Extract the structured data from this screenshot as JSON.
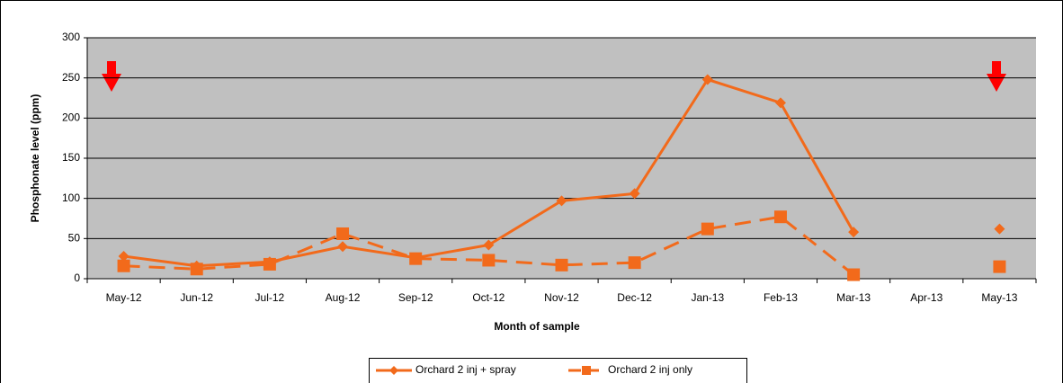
{
  "chart_data": {
    "type": "line",
    "x_label": "Month of sample",
    "y_label": "Phosphonate level (ppm)",
    "categories": [
      "May-12",
      "Jun-12",
      "Jul-12",
      "Aug-12",
      "Sep-12",
      "Oct-12",
      "Nov-12",
      "Dec-12",
      "Jan-13",
      "Feb-13",
      "Mar-13",
      "Apr-13",
      "May-13"
    ],
    "series": [
      {
        "name": "Orchard 2 inj + spray",
        "color": "#f26a1b",
        "marker": "diamond",
        "dash": false,
        "values": [
          28,
          16,
          21,
          40,
          26,
          42,
          97,
          106,
          248,
          219,
          58,
          null,
          62
        ]
      },
      {
        "name": "Orchard 2 inj only",
        "color": "#f26a1b",
        "marker": "square",
        "dash": true,
        "values": [
          16,
          12,
          18,
          56,
          25,
          23,
          17,
          20,
          62,
          77,
          5,
          null,
          15
        ]
      }
    ],
    "ylim": [
      0,
      300
    ],
    "yticks": [
      0,
      50,
      100,
      150,
      200,
      250,
      300
    ],
    "grid": true,
    "legend": "bottom"
  }
}
